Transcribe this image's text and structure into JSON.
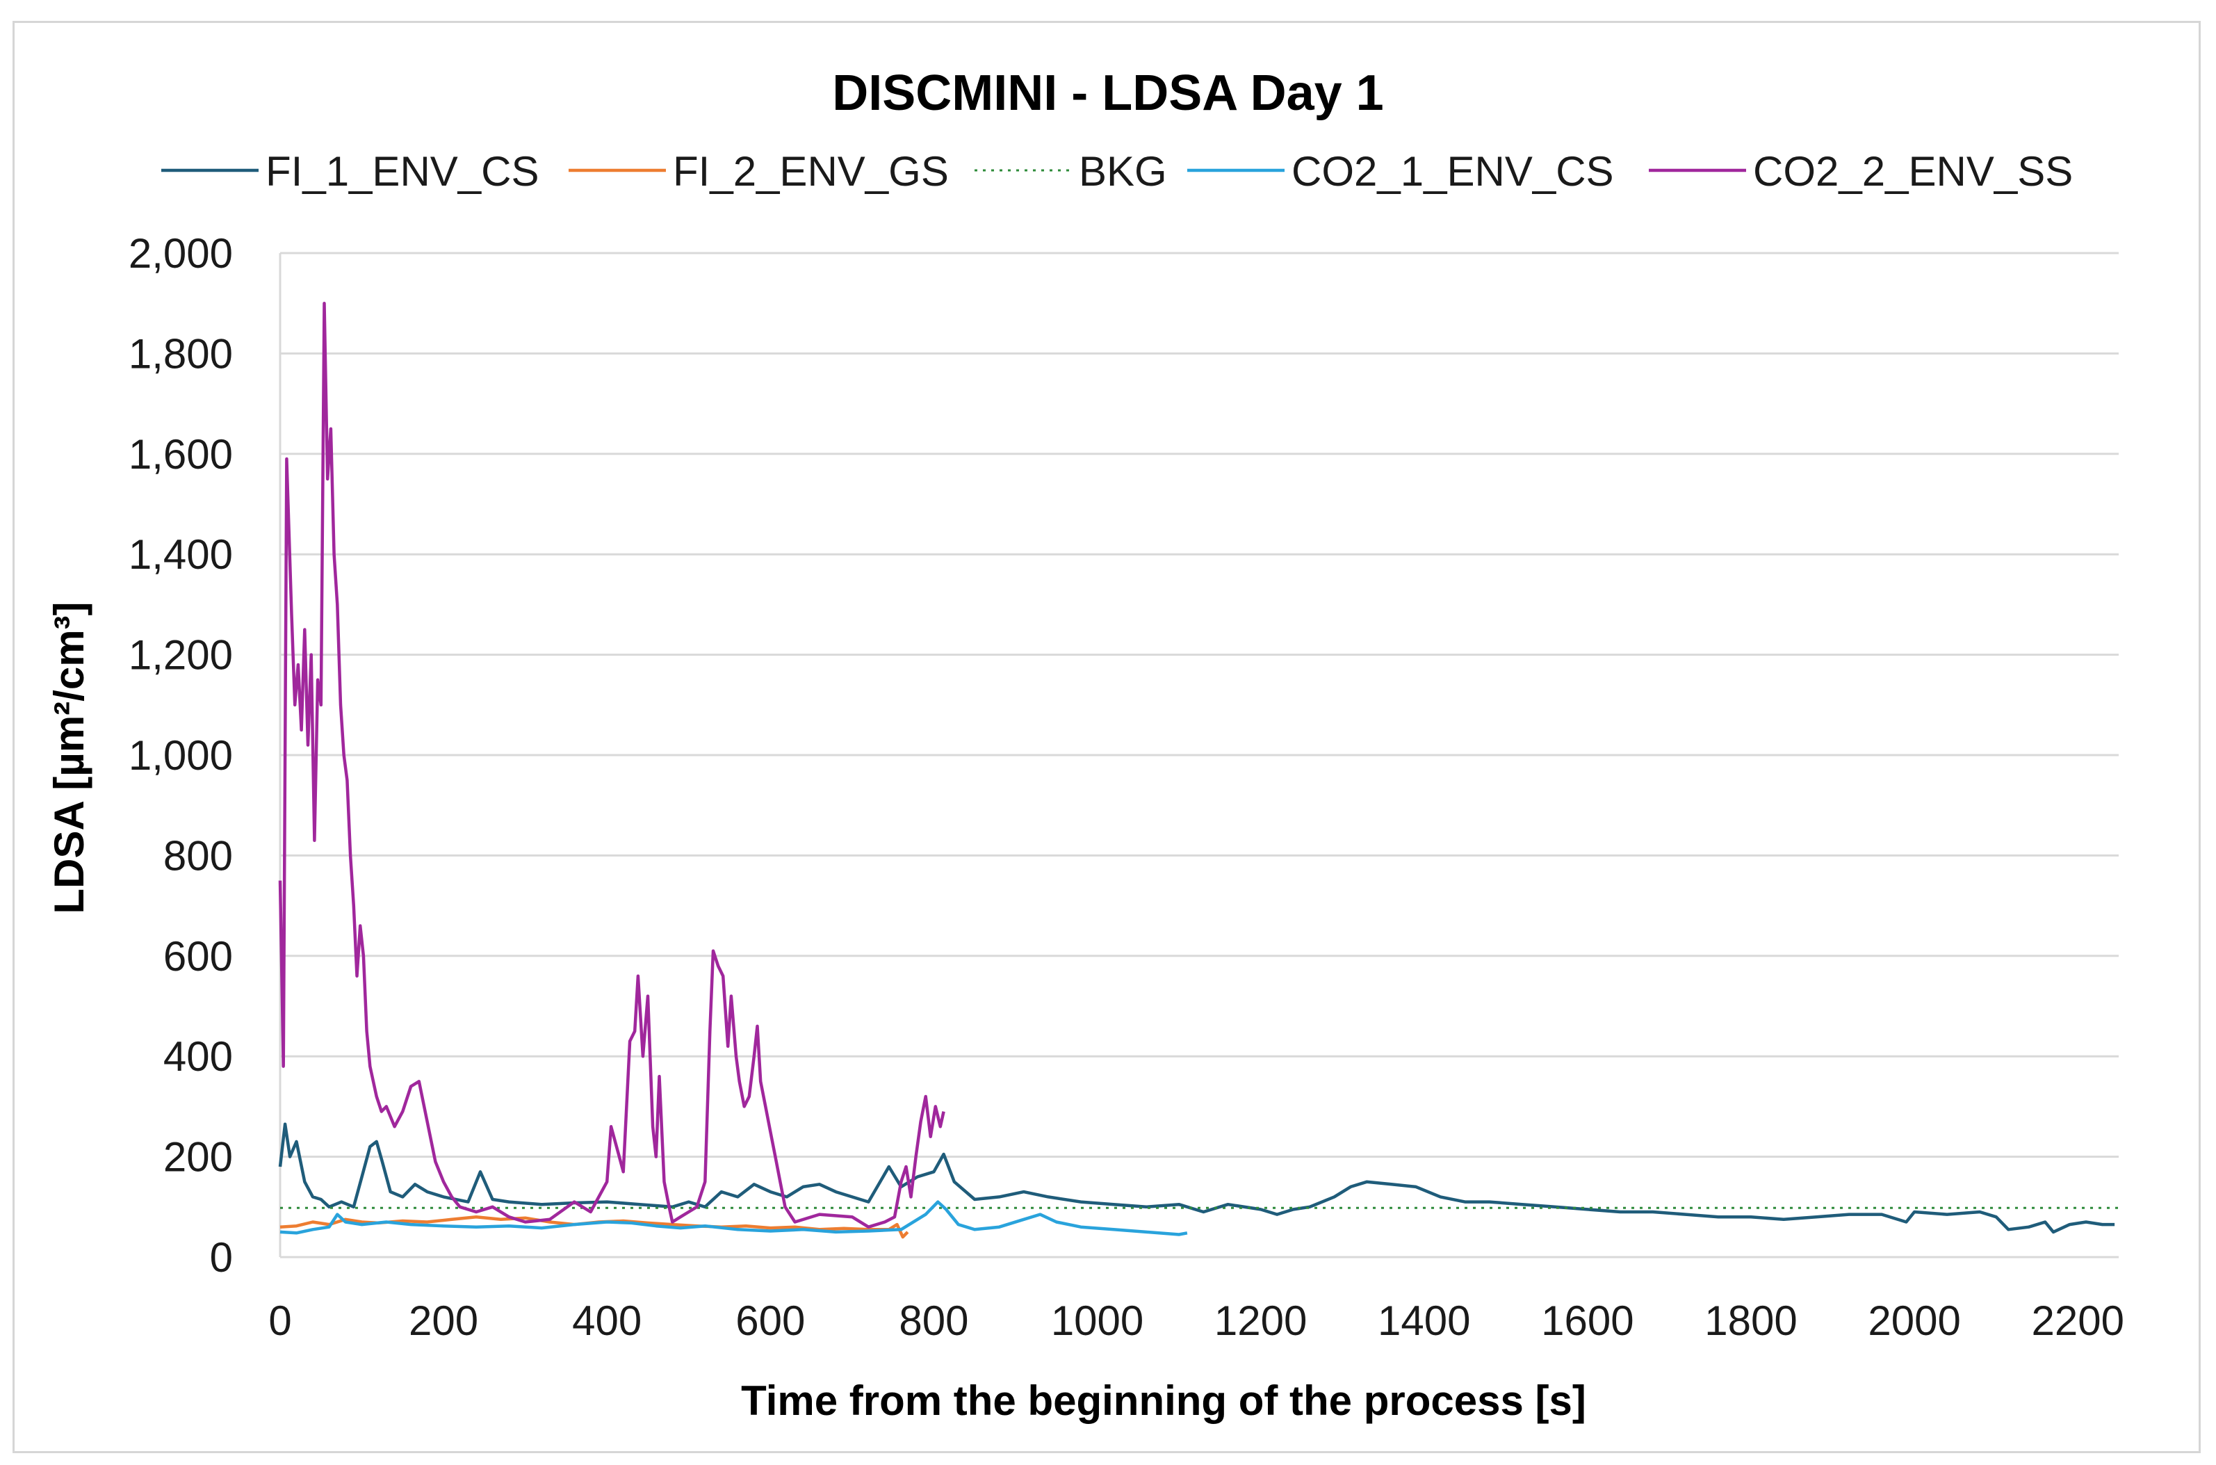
{
  "colors": {
    "fi1": "#1f5c7a",
    "fi2": "#ed7d31",
    "bkg": "#2e8b3a",
    "co21": "#29a3dc",
    "co22": "#a0279c",
    "grid": "#d9d9d9"
  },
  "chart_data": {
    "type": "line",
    "title": "DISCMINI - LDSA Day 1",
    "xlabel": "Time from the beginning of the process [s]",
    "ylabel": "LDSA [µm²/cm³]",
    "xlim": [
      0,
      2250
    ],
    "ylim": [
      0,
      2000
    ],
    "x_ticks": [
      0,
      200,
      400,
      600,
      800,
      1000,
      1200,
      1400,
      1600,
      1800,
      2000,
      2200
    ],
    "x_tick_labels": [
      "0",
      "200",
      "400",
      "600",
      "800",
      "1000",
      "1200",
      "1400",
      "1600",
      "1800",
      "2000",
      "2200"
    ],
    "y_ticks": [
      0,
      200,
      400,
      600,
      800,
      1000,
      1200,
      1400,
      1600,
      1800,
      2000
    ],
    "y_tick_labels": [
      "0",
      "200",
      "400",
      "600",
      "800",
      "1,000",
      "1,200",
      "1,400",
      "1,600",
      "1,800",
      "2,000"
    ],
    "legend_position": "top",
    "series": [
      {
        "name": "FI_1_ENV_CS",
        "color_key": "fi1",
        "dash": "",
        "points": [
          [
            0,
            180
          ],
          [
            6,
            265
          ],
          [
            12,
            200
          ],
          [
            20,
            230
          ],
          [
            30,
            150
          ],
          [
            40,
            120
          ],
          [
            50,
            115
          ],
          [
            60,
            100
          ],
          [
            75,
            110
          ],
          [
            90,
            100
          ],
          [
            100,
            160
          ],
          [
            110,
            220
          ],
          [
            118,
            230
          ],
          [
            125,
            190
          ],
          [
            135,
            130
          ],
          [
            150,
            120
          ],
          [
            165,
            145
          ],
          [
            180,
            130
          ],
          [
            200,
            120
          ],
          [
            230,
            110
          ],
          [
            245,
            170
          ],
          [
            260,
            115
          ],
          [
            280,
            110
          ],
          [
            320,
            105
          ],
          [
            360,
            108
          ],
          [
            400,
            110
          ],
          [
            440,
            105
          ],
          [
            480,
            100
          ],
          [
            500,
            110
          ],
          [
            520,
            100
          ],
          [
            540,
            130
          ],
          [
            560,
            120
          ],
          [
            580,
            145
          ],
          [
            600,
            130
          ],
          [
            620,
            120
          ],
          [
            640,
            140
          ],
          [
            660,
            145
          ],
          [
            680,
            130
          ],
          [
            700,
            120
          ],
          [
            720,
            110
          ],
          [
            745,
            180
          ],
          [
            760,
            140
          ],
          [
            780,
            160
          ],
          [
            800,
            170
          ],
          [
            812,
            205
          ],
          [
            825,
            150
          ],
          [
            850,
            115
          ],
          [
            880,
            120
          ],
          [
            910,
            130
          ],
          [
            940,
            120
          ],
          [
            980,
            110
          ],
          [
            1020,
            105
          ],
          [
            1060,
            100
          ],
          [
            1100,
            105
          ],
          [
            1130,
            90
          ],
          [
            1160,
            105
          ],
          [
            1200,
            95
          ],
          [
            1220,
            85
          ],
          [
            1240,
            95
          ],
          [
            1260,
            100
          ],
          [
            1290,
            120
          ],
          [
            1310,
            140
          ],
          [
            1330,
            150
          ],
          [
            1360,
            145
          ],
          [
            1390,
            140
          ],
          [
            1420,
            120
          ],
          [
            1450,
            110
          ],
          [
            1480,
            110
          ],
          [
            1520,
            105
          ],
          [
            1560,
            100
          ],
          [
            1600,
            95
          ],
          [
            1640,
            90
          ],
          [
            1680,
            90
          ],
          [
            1720,
            85
          ],
          [
            1760,
            80
          ],
          [
            1800,
            80
          ],
          [
            1840,
            75
          ],
          [
            1880,
            80
          ],
          [
            1920,
            85
          ],
          [
            1960,
            85
          ],
          [
            1990,
            70
          ],
          [
            2000,
            90
          ],
          [
            2040,
            85
          ],
          [
            2080,
            90
          ],
          [
            2100,
            80
          ],
          [
            2115,
            55
          ],
          [
            2140,
            60
          ],
          [
            2160,
            70
          ],
          [
            2170,
            50
          ],
          [
            2190,
            65
          ],
          [
            2210,
            70
          ],
          [
            2230,
            65
          ],
          [
            2245,
            65
          ]
        ]
      },
      {
        "name": "FI_2_ENV_GS",
        "color_key": "fi2",
        "dash": "",
        "points": [
          [
            0,
            60
          ],
          [
            20,
            62
          ],
          [
            40,
            70
          ],
          [
            60,
            65
          ],
          [
            80,
            75
          ],
          [
            100,
            70
          ],
          [
            120,
            68
          ],
          [
            150,
            72
          ],
          [
            180,
            70
          ],
          [
            210,
            75
          ],
          [
            240,
            80
          ],
          [
            270,
            75
          ],
          [
            300,
            78
          ],
          [
            330,
            70
          ],
          [
            360,
            65
          ],
          [
            390,
            70
          ],
          [
            420,
            72
          ],
          [
            450,
            68
          ],
          [
            480,
            65
          ],
          [
            510,
            62
          ],
          [
            540,
            60
          ],
          [
            570,
            62
          ],
          [
            600,
            58
          ],
          [
            630,
            60
          ],
          [
            660,
            55
          ],
          [
            690,
            57
          ],
          [
            720,
            55
          ],
          [
            745,
            55
          ],
          [
            755,
            65
          ],
          [
            762,
            40
          ],
          [
            768,
            50
          ]
        ]
      },
      {
        "name": "BKG",
        "color_key": "bkg",
        "dash": "4 8",
        "points": [
          [
            0,
            98
          ],
          [
            2250,
            98
          ]
        ]
      },
      {
        "name": "CO2_1_ENV_CS",
        "color_key": "co21",
        "dash": "",
        "points": [
          [
            0,
            50
          ],
          [
            20,
            48
          ],
          [
            40,
            55
          ],
          [
            60,
            60
          ],
          [
            70,
            85
          ],
          [
            80,
            70
          ],
          [
            100,
            65
          ],
          [
            130,
            70
          ],
          [
            160,
            65
          ],
          [
            200,
            62
          ],
          [
            240,
            60
          ],
          [
            280,
            62
          ],
          [
            320,
            58
          ],
          [
            360,
            65
          ],
          [
            400,
            70
          ],
          [
            430,
            68
          ],
          [
            460,
            62
          ],
          [
            490,
            58
          ],
          [
            520,
            62
          ],
          [
            560,
            55
          ],
          [
            600,
            52
          ],
          [
            640,
            55
          ],
          [
            680,
            50
          ],
          [
            720,
            52
          ],
          [
            760,
            55
          ],
          [
            790,
            85
          ],
          [
            805,
            110
          ],
          [
            815,
            95
          ],
          [
            830,
            65
          ],
          [
            850,
            55
          ],
          [
            880,
            60
          ],
          [
            910,
            75
          ],
          [
            930,
            85
          ],
          [
            950,
            70
          ],
          [
            980,
            60
          ],
          [
            1020,
            55
          ],
          [
            1060,
            50
          ],
          [
            1100,
            45
          ],
          [
            1110,
            48
          ]
        ]
      },
      {
        "name": "CO2_2_ENV_SS",
        "color_key": "co22",
        "dash": "",
        "points": [
          [
            0,
            750
          ],
          [
            4,
            380
          ],
          [
            8,
            1590
          ],
          [
            14,
            1280
          ],
          [
            18,
            1100
          ],
          [
            22,
            1180
          ],
          [
            26,
            1050
          ],
          [
            30,
            1250
          ],
          [
            34,
            1020
          ],
          [
            38,
            1200
          ],
          [
            42,
            830
          ],
          [
            46,
            1150
          ],
          [
            50,
            1100
          ],
          [
            54,
            1900
          ],
          [
            58,
            1550
          ],
          [
            62,
            1650
          ],
          [
            66,
            1400
          ],
          [
            70,
            1300
          ],
          [
            74,
            1100
          ],
          [
            78,
            1000
          ],
          [
            82,
            950
          ],
          [
            86,
            800
          ],
          [
            90,
            700
          ],
          [
            94,
            560
          ],
          [
            98,
            660
          ],
          [
            102,
            600
          ],
          [
            106,
            450
          ],
          [
            110,
            380
          ],
          [
            114,
            350
          ],
          [
            118,
            320
          ],
          [
            124,
            290
          ],
          [
            130,
            300
          ],
          [
            140,
            260
          ],
          [
            150,
            290
          ],
          [
            160,
            340
          ],
          [
            170,
            350
          ],
          [
            180,
            270
          ],
          [
            190,
            190
          ],
          [
            200,
            150
          ],
          [
            210,
            120
          ],
          [
            220,
            100
          ],
          [
            240,
            90
          ],
          [
            260,
            100
          ],
          [
            280,
            80
          ],
          [
            300,
            70
          ],
          [
            330,
            75
          ],
          [
            360,
            110
          ],
          [
            380,
            90
          ],
          [
            400,
            150
          ],
          [
            405,
            260
          ],
          [
            415,
            200
          ],
          [
            420,
            170
          ],
          [
            428,
            430
          ],
          [
            434,
            450
          ],
          [
            438,
            560
          ],
          [
            444,
            400
          ],
          [
            450,
            520
          ],
          [
            456,
            260
          ],
          [
            460,
            200
          ],
          [
            464,
            360
          ],
          [
            470,
            150
          ],
          [
            476,
            100
          ],
          [
            480,
            70
          ],
          [
            490,
            80
          ],
          [
            500,
            90
          ],
          [
            510,
            100
          ],
          [
            520,
            150
          ],
          [
            526,
            450
          ],
          [
            530,
            610
          ],
          [
            536,
            580
          ],
          [
            542,
            560
          ],
          [
            548,
            420
          ],
          [
            552,
            520
          ],
          [
            558,
            400
          ],
          [
            562,
            350
          ],
          [
            568,
            300
          ],
          [
            574,
            320
          ],
          [
            580,
            400
          ],
          [
            584,
            460
          ],
          [
            588,
            350
          ],
          [
            594,
            300
          ],
          [
            600,
            250
          ],
          [
            606,
            200
          ],
          [
            612,
            150
          ],
          [
            618,
            100
          ],
          [
            630,
            70
          ],
          [
            660,
            85
          ],
          [
            700,
            80
          ],
          [
            720,
            60
          ],
          [
            740,
            70
          ],
          [
            752,
            80
          ],
          [
            760,
            150
          ],
          [
            766,
            180
          ],
          [
            772,
            120
          ],
          [
            778,
            200
          ],
          [
            784,
            270
          ],
          [
            790,
            320
          ],
          [
            796,
            240
          ],
          [
            802,
            300
          ],
          [
            808,
            260
          ],
          [
            812,
            290
          ]
        ]
      }
    ]
  }
}
